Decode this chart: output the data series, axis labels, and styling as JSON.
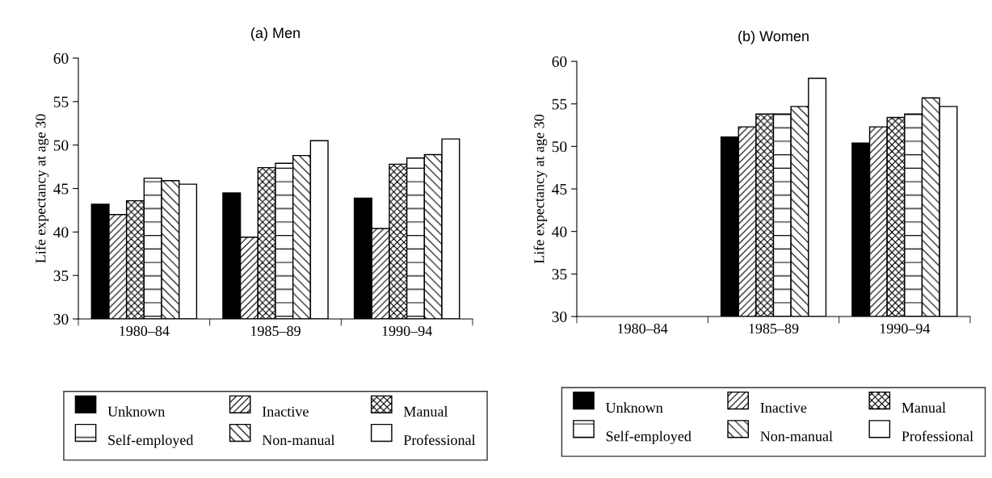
{
  "chart_data": [
    {
      "type": "bar",
      "title": "(a) Men",
      "ylabel": "Life expectancy at age 30",
      "categories": [
        "1980–84",
        "1985–89",
        "1990–94"
      ],
      "ylim": [
        30,
        60
      ],
      "yticks": [
        30,
        35,
        40,
        45,
        50,
        55,
        60
      ],
      "legend": "bottom",
      "grid": false,
      "series": [
        {
          "name": "Unknown",
          "color": "#000000",
          "values": [
            43.2,
            44.5,
            43.9
          ]
        },
        {
          "name": "Inactive",
          "color": "#ffffff",
          "values": [
            42.0,
            39.4,
            40.4
          ]
        },
        {
          "name": "Manual",
          "color": "#ffffff",
          "values": [
            43.6,
            47.4,
            47.8
          ]
        },
        {
          "name": "Self-employed",
          "color": "#ffffff",
          "values": [
            46.2,
            47.9,
            48.5
          ]
        },
        {
          "name": "Non-manual",
          "color": "#ffffff",
          "values": [
            45.9,
            48.8,
            48.9
          ]
        },
        {
          "name": "Professional",
          "color": "#ffffff",
          "values": [
            45.5,
            50.5,
            50.7
          ]
        }
      ]
    },
    {
      "type": "bar",
      "title": "(b) Women",
      "ylabel": "Life expectancy at age 30",
      "categories": [
        "1980–84",
        "1985–89",
        "1990–94"
      ],
      "ylim": [
        30,
        60
      ],
      "yticks": [
        30,
        35,
        40,
        45,
        50,
        55,
        60
      ],
      "legend": "bottom",
      "grid": false,
      "series": [
        {
          "name": "Unknown",
          "color": "#000000",
          "values": [
            null,
            51.1,
            50.4
          ]
        },
        {
          "name": "Inactive",
          "color": "#ffffff",
          "values": [
            null,
            52.3,
            52.3
          ]
        },
        {
          "name": "Manual",
          "color": "#ffffff",
          "values": [
            null,
            53.8,
            53.4
          ]
        },
        {
          "name": "Self-employed",
          "color": "#ffffff",
          "values": [
            null,
            53.8,
            53.8
          ]
        },
        {
          "name": "Non-manual",
          "color": "#ffffff",
          "values": [
            null,
            54.7,
            55.7
          ]
        },
        {
          "name": "Professional",
          "color": "#ffffff",
          "values": [
            null,
            58.0,
            54.7
          ]
        }
      ]
    }
  ]
}
